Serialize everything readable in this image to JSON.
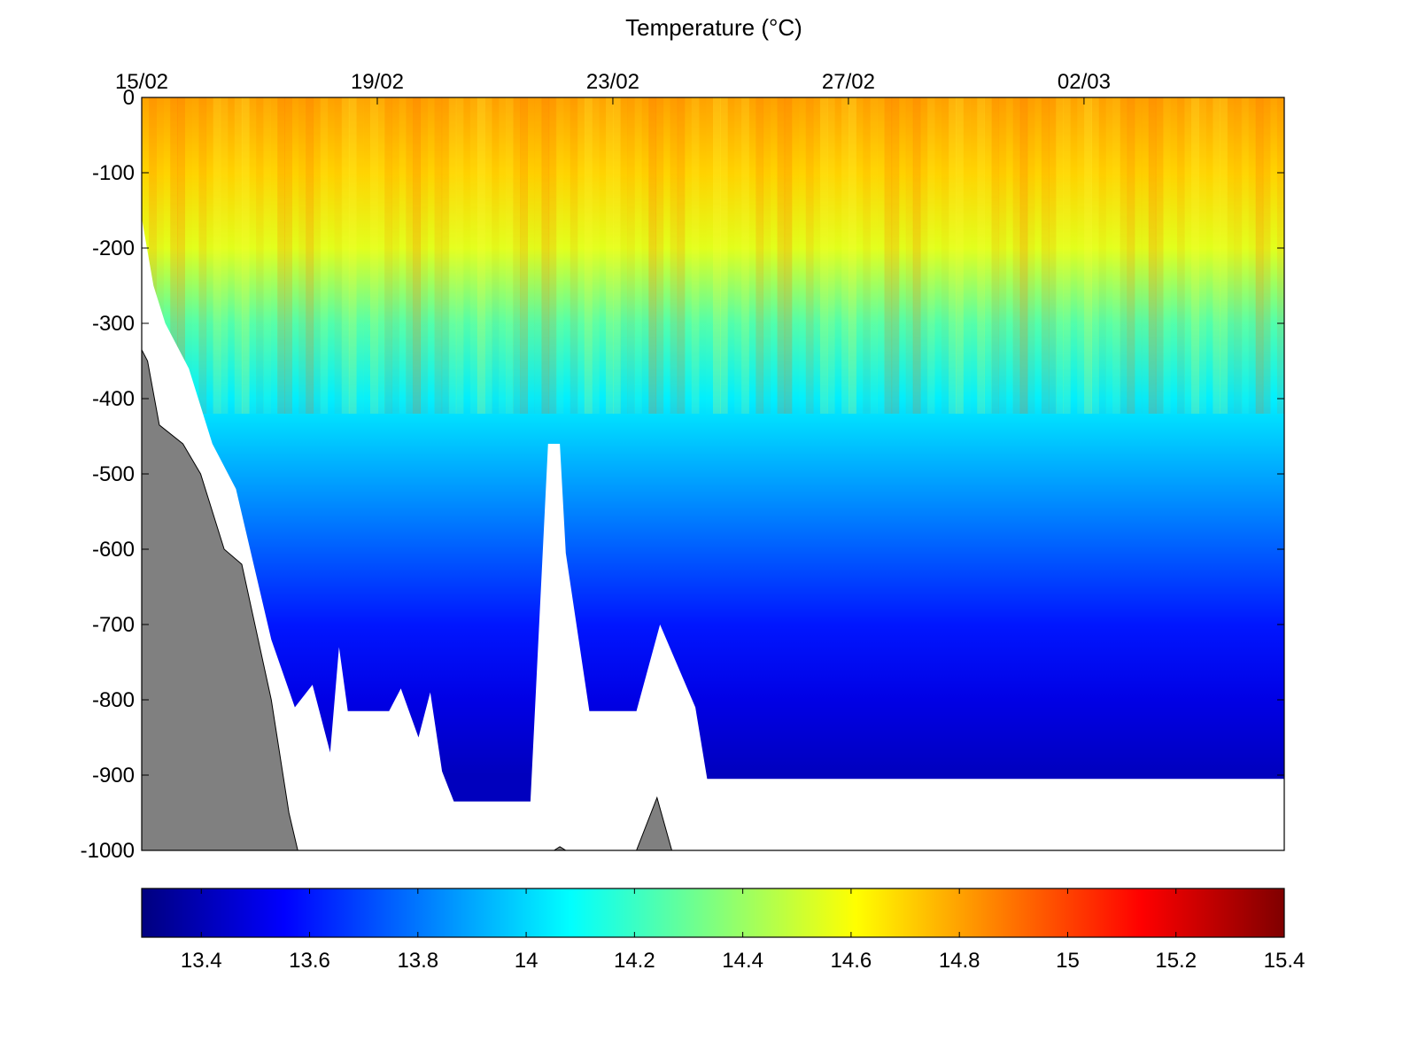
{
  "chart_data": {
    "type": "heatmap",
    "title": "Temperature (°C)",
    "xlabel": "",
    "ylabel": "",
    "x_axis": {
      "position": "top",
      "ticks": [
        {
          "value": 0,
          "label": "15/02"
        },
        {
          "value": 4,
          "label": "19/02"
        },
        {
          "value": 8,
          "label": "23/02"
        },
        {
          "value": 12,
          "label": "27/02"
        },
        {
          "value": 16,
          "label": "02/03"
        }
      ],
      "range_days_from_15_02": [
        0,
        19.4
      ]
    },
    "y_axis": {
      "ylim": [
        -1000,
        0
      ],
      "ticks": [
        0,
        -100,
        -200,
        -300,
        -400,
        -500,
        -600,
        -700,
        -800,
        -900,
        -1000
      ]
    },
    "colorbar": {
      "position": "bottom",
      "colormap": "jet",
      "clim": [
        13.29,
        15.4
      ],
      "ticks": [
        13.4,
        13.6,
        13.8,
        14,
        14.2,
        14.4,
        14.6,
        14.8,
        15,
        15.2,
        15.4
      ],
      "colors": [
        "#00007f",
        "#0000ff",
        "#007fff",
        "#00ffff",
        "#7fff7f",
        "#ffff00",
        "#ff7f00",
        "#ff0000",
        "#7f0000"
      ]
    },
    "temperature_profile": {
      "depth": [
        0,
        -100,
        -200,
        -300,
        -400,
        -500,
        -600,
        -700,
        -800,
        -900
      ],
      "temperature": [
        14.8,
        14.7,
        14.55,
        14.25,
        14.05,
        13.9,
        13.75,
        13.6,
        13.5,
        13.42
      ]
    },
    "data_coverage_bottom_depth": [
      [
        0,
        -160
      ],
      [
        0.2,
        -250
      ],
      [
        0.4,
        -300
      ],
      [
        0.8,
        -360
      ],
      [
        1.2,
        -460
      ],
      [
        1.6,
        -520
      ],
      [
        2.2,
        -720
      ],
      [
        2.6,
        -810
      ],
      [
        2.9,
        -780
      ],
      [
        3.2,
        -870
      ],
      [
        3.35,
        -730
      ],
      [
        3.5,
        -815
      ],
      [
        4.2,
        -815
      ],
      [
        4.4,
        -785
      ],
      [
        4.7,
        -850
      ],
      [
        4.9,
        -790
      ],
      [
        5.1,
        -895
      ],
      [
        5.3,
        -935
      ],
      [
        6.6,
        -935
      ],
      [
        6.9,
        -460
      ],
      [
        7.1,
        -460
      ],
      [
        7.2,
        -605
      ],
      [
        7.6,
        -815
      ],
      [
        8.4,
        -815
      ],
      [
        8.8,
        -700
      ],
      [
        9.4,
        -810
      ],
      [
        9.6,
        -905
      ],
      [
        19.4,
        -905
      ]
    ],
    "seabed": [
      [
        0,
        -335
      ],
      [
        0.1,
        -350
      ],
      [
        0.3,
        -435
      ],
      [
        0.7,
        -460
      ],
      [
        1.0,
        -500
      ],
      [
        1.4,
        -600
      ],
      [
        1.7,
        -620
      ],
      [
        2.2,
        -800
      ],
      [
        2.5,
        -950
      ],
      [
        2.65,
        -1000
      ],
      [
        7.0,
        -1000
      ],
      [
        7.1,
        -995
      ],
      [
        7.2,
        -1000
      ],
      [
        8.4,
        -1000
      ],
      [
        8.75,
        -930
      ],
      [
        9.0,
        -1000
      ]
    ]
  }
}
